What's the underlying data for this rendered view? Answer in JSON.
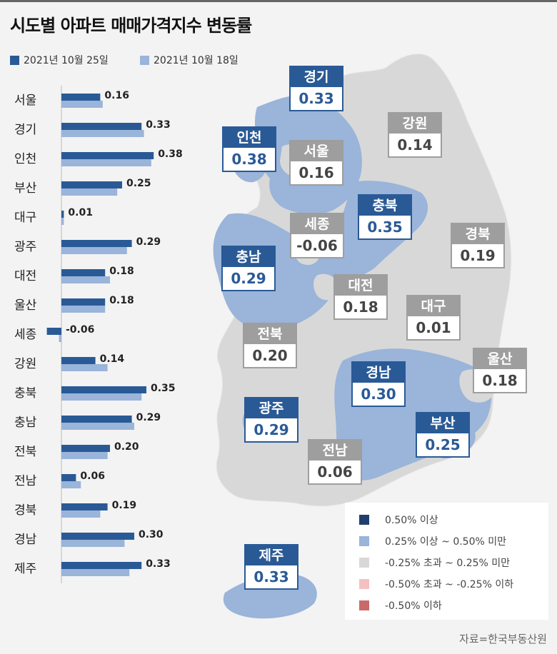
{
  "title": "시도별 아파트 매매가격지수 변동률",
  "legend_top": [
    {
      "label": "2021년 10월 25일",
      "color": "#2a5a96"
    },
    {
      "label": "2021년 10월 18일",
      "color": "#9ab4da"
    }
  ],
  "chart_data": {
    "type": "bar",
    "orientation": "horizontal",
    "categories": [
      "서울",
      "경기",
      "인천",
      "부산",
      "대구",
      "광주",
      "대전",
      "울산",
      "세종",
      "강원",
      "충북",
      "충남",
      "전북",
      "전남",
      "경북",
      "경남",
      "제주"
    ],
    "series": [
      {
        "name": "2021년 10월 25일",
        "values": [
          0.16,
          0.33,
          0.38,
          0.25,
          0.01,
          0.29,
          0.18,
          0.18,
          -0.06,
          0.14,
          0.35,
          0.29,
          0.2,
          0.06,
          0.19,
          0.3,
          0.33
        ]
      },
      {
        "name": "2021년 10월 18일",
        "values": [
          0.17,
          0.34,
          0.37,
          0.23,
          0.01,
          0.27,
          0.2,
          0.18,
          -0.01,
          0.19,
          0.33,
          0.3,
          0.19,
          0.08,
          0.16,
          0.26,
          0.28
        ]
      }
    ],
    "labels": [
      "0.16",
      "0.33",
      "0.38",
      "0.25",
      "0.01",
      "0.29",
      "0.18",
      "0.18",
      "-0.06",
      "0.14",
      "0.35",
      "0.29",
      "0.20",
      "0.06",
      "0.19",
      "0.30",
      "0.33"
    ]
  },
  "map_regions": [
    {
      "name": "경기",
      "value": "0.33",
      "class": "blue"
    },
    {
      "name": "강원",
      "value": "0.14",
      "class": "gray"
    },
    {
      "name": "인천",
      "value": "0.38",
      "class": "blue"
    },
    {
      "name": "서울",
      "value": "0.16",
      "class": "gray"
    },
    {
      "name": "충북",
      "value": "0.35",
      "class": "blue"
    },
    {
      "name": "세종",
      "value": "-0.06",
      "class": "gray"
    },
    {
      "name": "경북",
      "value": "0.19",
      "class": "gray"
    },
    {
      "name": "충남",
      "value": "0.29",
      "class": "blue"
    },
    {
      "name": "대전",
      "value": "0.18",
      "class": "gray"
    },
    {
      "name": "대구",
      "value": "0.01",
      "class": "gray"
    },
    {
      "name": "전북",
      "value": "0.20",
      "class": "gray"
    },
    {
      "name": "경남",
      "value": "0.30",
      "class": "blue"
    },
    {
      "name": "울산",
      "value": "0.18",
      "class": "gray"
    },
    {
      "name": "광주",
      "value": "0.29",
      "class": "blue"
    },
    {
      "name": "부산",
      "value": "0.25",
      "class": "blue"
    },
    {
      "name": "전남",
      "value": "0.06",
      "class": "gray"
    },
    {
      "name": "제주",
      "value": "0.33",
      "class": "blue"
    }
  ],
  "map_legend": [
    {
      "label": "0.50% 이상",
      "color": "#1f3f6e"
    },
    {
      "label": "0.25% 이상 ~ 0.50% 미만",
      "color": "#9ab4da"
    },
    {
      "label": "-0.25% 초과 ~ 0.25% 미만",
      "color": "#d8d8d8"
    },
    {
      "label": "-0.50% 초과 ~ -0.25% 이하",
      "color": "#f5c0c0"
    },
    {
      "label": "-0.50% 이하",
      "color": "#c96a6a"
    }
  ],
  "colors": {
    "map_blue": "#9ab4da",
    "map_gray": "#d8d8d8",
    "text_blue": "#2a5a96"
  },
  "source": "자료=한국부동산원"
}
